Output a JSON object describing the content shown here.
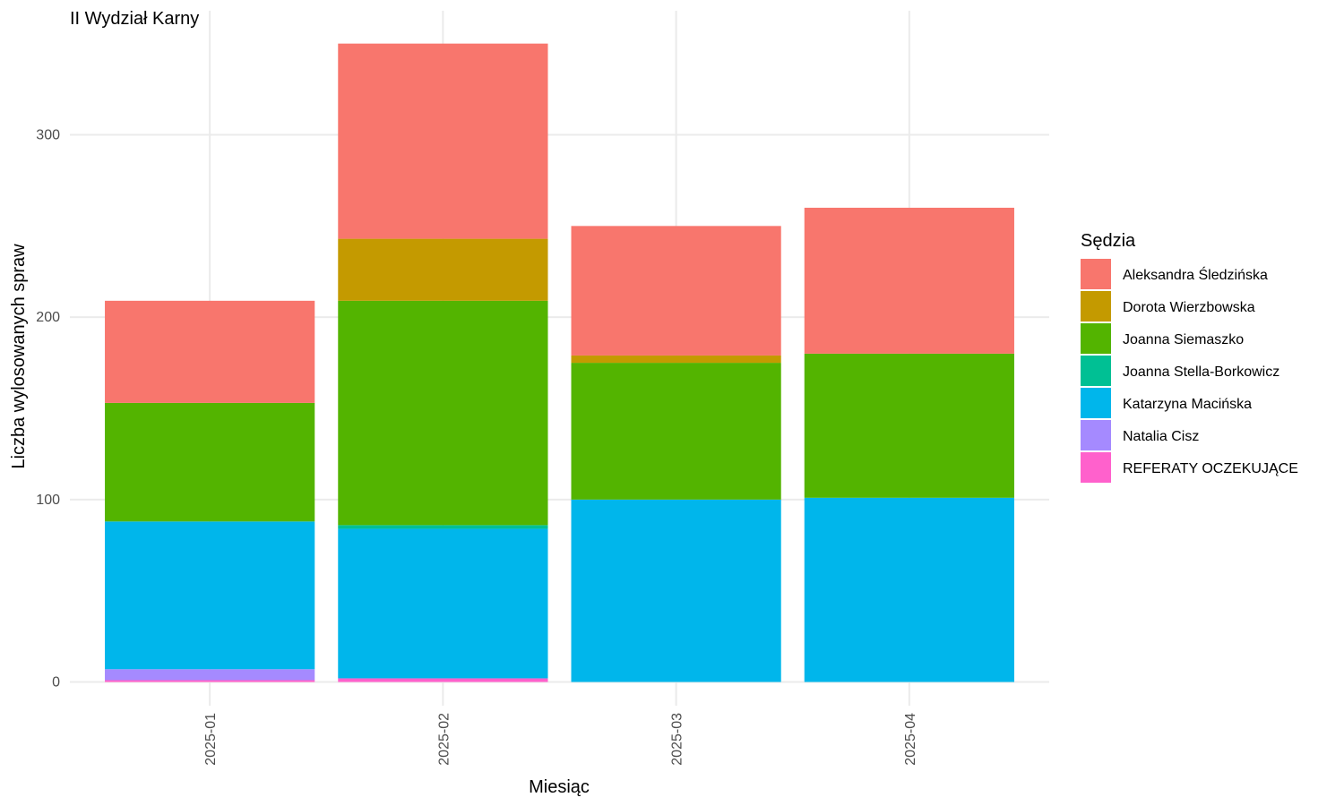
{
  "chart_data": {
    "type": "bar",
    "stacked": true,
    "title": "II Wydział Karny",
    "xlabel": "Miesiąc",
    "ylabel": "Liczba wylosowanych spraw",
    "categories": [
      "2025-01",
      "2025-02",
      "2025-03",
      "2025-04"
    ],
    "ylim": [
      -13,
      368
    ],
    "yticks": [
      0,
      100,
      200,
      300
    ],
    "grid": true,
    "legend_title": "Sędzia",
    "legend_position": "right",
    "series": [
      {
        "name": "REFERATY OCZEKUJĄCE",
        "color": "#FF61CC",
        "values": [
          1,
          2,
          0,
          0
        ]
      },
      {
        "name": "Natalia Cisz",
        "color": "#A58AFF",
        "values": [
          6,
          0,
          0,
          0
        ]
      },
      {
        "name": "Katarzyna Macińska",
        "color": "#00B6EB",
        "values": [
          81,
          82,
          100,
          101
        ]
      },
      {
        "name": "Joanna Stella-Borkowicz",
        "color": "#00C094",
        "values": [
          0,
          2,
          0,
          0
        ]
      },
      {
        "name": "Joanna Siemaszko",
        "color": "#53B400",
        "values": [
          65,
          123,
          75,
          79
        ]
      },
      {
        "name": "Dorota Wierzbowska",
        "color": "#C49A00",
        "values": [
          0,
          34,
          4,
          0
        ]
      },
      {
        "name": "Aleksandra Śledzińska",
        "color": "#F8766D",
        "values": [
          56,
          107,
          71,
          80
        ]
      }
    ],
    "legend_order": [
      "Aleksandra Śledzińska",
      "Dorota Wierzbowska",
      "Joanna Siemaszko",
      "Joanna Stella-Borkowicz",
      "Katarzyna Macińska",
      "Natalia Cisz",
      "REFERATY OCZEKUJĄCE"
    ]
  }
}
